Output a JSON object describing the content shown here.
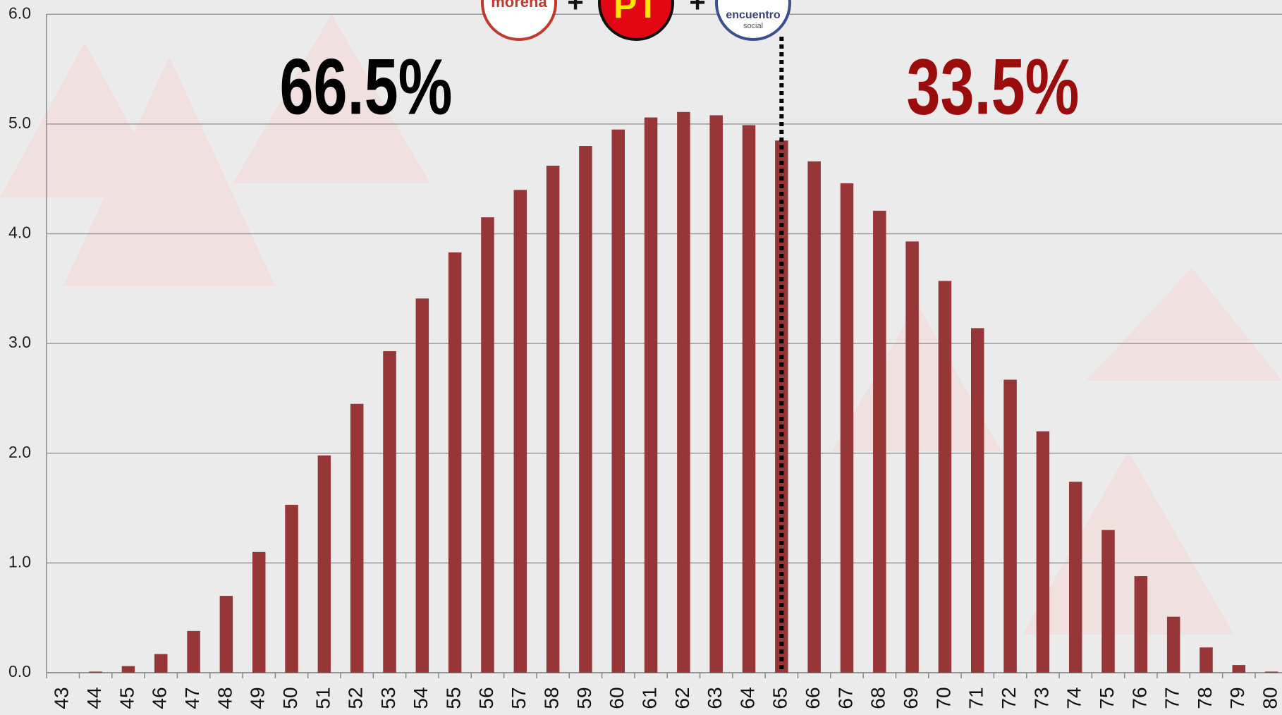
{
  "chart_data": {
    "type": "bar",
    "categories": [
      "43",
      "44",
      "45",
      "46",
      "47",
      "48",
      "49",
      "50",
      "51",
      "52",
      "53",
      "54",
      "55",
      "56",
      "57",
      "58",
      "59",
      "60",
      "61",
      "62",
      "63",
      "64",
      "65",
      "66",
      "67",
      "68",
      "69",
      "70",
      "71",
      "72",
      "73",
      "74",
      "75",
      "76",
      "77",
      "78",
      "79",
      "80"
    ],
    "values": [
      0,
      0.01,
      0.06,
      0.17,
      0.38,
      0.7,
      1.1,
      1.53,
      1.98,
      2.45,
      2.93,
      3.41,
      3.83,
      4.15,
      4.4,
      4.62,
      4.8,
      4.95,
      5.06,
      5.11,
      5.08,
      4.99,
      4.85,
      4.66,
      4.46,
      4.21,
      3.93,
      3.57,
      3.14,
      2.67,
      2.2,
      1.74,
      1.3,
      0.88,
      0.51,
      0.23,
      0.07,
      0.01
    ],
    "color": "#963636",
    "ylim": [
      0,
      6
    ],
    "yticks": [
      {
        "value": 0,
        "label": "0.0"
      },
      {
        "value": 1,
        "label": "1.0"
      },
      {
        "value": 2,
        "label": "2.0"
      },
      {
        "value": 3,
        "label": "3.0"
      },
      {
        "value": 4,
        "label": "4.0"
      },
      {
        "value": 5,
        "label": "5.0"
      },
      {
        "value": 6,
        "label": "6.0"
      }
    ],
    "grid": true,
    "threshold": 65,
    "annotations": [
      {
        "text": "66.5%",
        "color": "#000000"
      },
      {
        "text": "33.5%",
        "color": "#9b0d0d"
      }
    ],
    "logos": [
      {
        "text": "morena"
      },
      {
        "text": "PT"
      },
      {
        "text": "encuentro",
        "subtext": "social"
      }
    ],
    "logo_separator": "+"
  }
}
